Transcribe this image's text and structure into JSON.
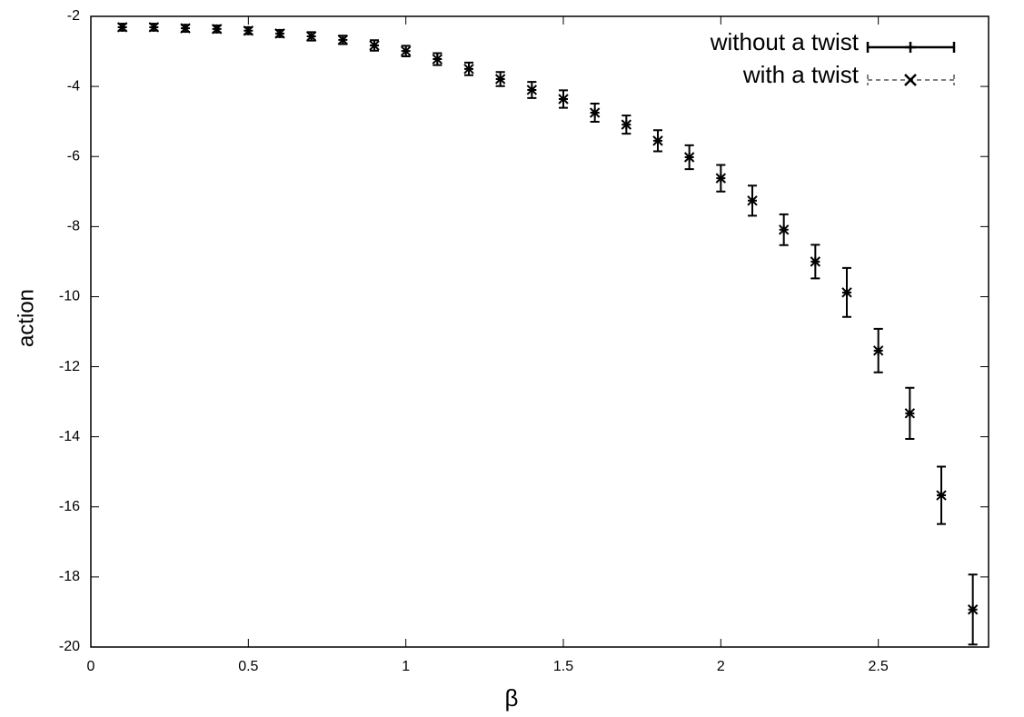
{
  "chart_data": {
    "type": "errorbar",
    "xlabel": "β",
    "ylabel": "action",
    "x": [
      0.1,
      0.2,
      0.3,
      0.4,
      0.5,
      0.6,
      0.7,
      0.8,
      0.9,
      1.0,
      1.1,
      1.2,
      1.3,
      1.4,
      1.5,
      1.6,
      1.7,
      1.8,
      1.9,
      2.0,
      2.1,
      2.2,
      2.3,
      2.4,
      2.5,
      2.6,
      2.7,
      2.8
    ],
    "series": [
      {
        "name": "without a twist",
        "color": "#000000",
        "line_style": "solid",
        "marker": "plus",
        "values": [
          -2.31,
          -2.31,
          -2.34,
          -2.36,
          -2.41,
          -2.49,
          -2.57,
          -2.67,
          -2.83,
          -2.99,
          -3.22,
          -3.5,
          -3.79,
          -4.1,
          -4.36,
          -4.75,
          -5.09,
          -5.55,
          -6.02,
          -6.62,
          -7.26,
          -8.09,
          -9.0,
          -9.88,
          -11.54,
          -13.33,
          -15.67,
          -18.93
        ],
        "errors": [
          0.1,
          0.1,
          0.1,
          0.1,
          0.1,
          0.1,
          0.12,
          0.12,
          0.15,
          0.15,
          0.17,
          0.18,
          0.2,
          0.23,
          0.25,
          0.26,
          0.26,
          0.3,
          0.34,
          0.38,
          0.43,
          0.44,
          0.48,
          0.7,
          0.62,
          0.73,
          0.82,
          1.0
        ]
      },
      {
        "name": "with a twist",
        "color": "#000000",
        "line_style": "dashed",
        "marker": "cross",
        "values": [
          -2.31,
          -2.31,
          -2.34,
          -2.36,
          -2.41,
          -2.49,
          -2.57,
          -2.67,
          -2.83,
          -2.99,
          -3.22,
          -3.5,
          -3.79,
          -4.1,
          -4.36,
          -4.75,
          -5.09,
          -5.55,
          -6.02,
          -6.62,
          -7.26,
          -8.09,
          -9.0,
          -9.88,
          -11.54,
          -13.33,
          -15.67,
          -18.93
        ],
        "errors": [
          0.1,
          0.1,
          0.1,
          0.1,
          0.1,
          0.1,
          0.12,
          0.12,
          0.15,
          0.15,
          0.17,
          0.18,
          0.2,
          0.23,
          0.25,
          0.26,
          0.26,
          0.3,
          0.34,
          0.38,
          0.43,
          0.44,
          0.48,
          0.7,
          0.62,
          0.73,
          0.82,
          1.0
        ]
      }
    ],
    "xlim": [
      0,
      2.85
    ],
    "ylim": [
      -20,
      -2
    ],
    "xticks": [
      0,
      0.5,
      1,
      1.5,
      2,
      2.5
    ],
    "yticks": [
      -2,
      -4,
      -6,
      -8,
      -10,
      -12,
      -14,
      -16,
      -18,
      -20
    ],
    "grid": false,
    "legend": "upper right"
  }
}
